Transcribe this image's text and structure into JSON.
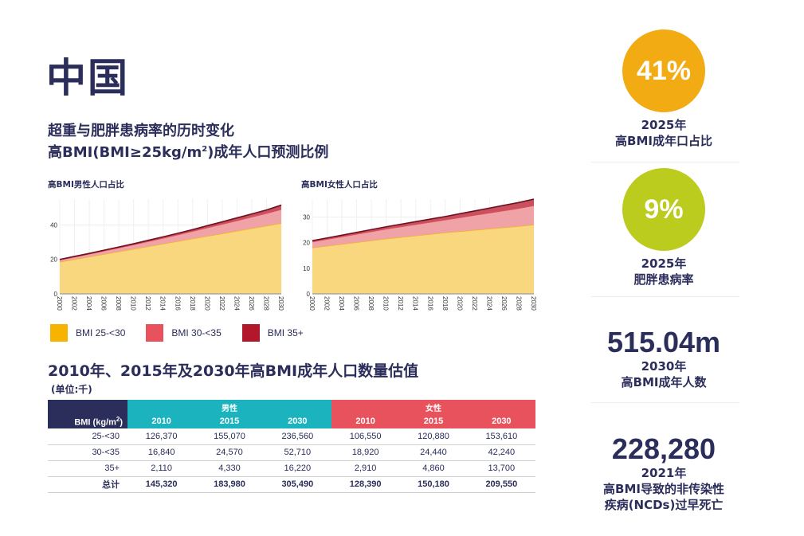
{
  "page": {
    "title": "中国",
    "subtitle_line1": "超重与肥胖患病率的历时变化",
    "subtitle_line2_prefix": "高BMI(BMI≥25kg/m",
    "subtitle_line2_sup": "2",
    "subtitle_line2_suffix": ")成年人口预测比例"
  },
  "colors": {
    "bmi_25_30": "#f6b300",
    "bmi_25_30_fill": "#f9d77e",
    "bmi_30_35": "#e8525c",
    "bmi_30_35_fill": "#f0a3a6",
    "bmi_35_plus": "#b2182b",
    "bmi_35_plus_fill": "#c9505e",
    "navy": "#2b2d5a",
    "teal": "#1bb3bd",
    "stat_orange": "#f2ab12",
    "stat_lime": "#bccc1e"
  },
  "chart_data": [
    {
      "type": "area",
      "stacked": true,
      "title": "高BMI男性人口占比",
      "xlabel": "",
      "ylabel": "",
      "x": [
        2000,
        2002,
        2004,
        2006,
        2008,
        2010,
        2012,
        2014,
        2016,
        2018,
        2020,
        2022,
        2024,
        2026,
        2028,
        2030
      ],
      "xticks": [
        "2000",
        "2002",
        "2004",
        "2006",
        "2008",
        "2010",
        "2012",
        "2014",
        "2016",
        "2018",
        "2020",
        "2022",
        "2024",
        "2026",
        "2028",
        "2030"
      ],
      "yticks": [
        0,
        20,
        40
      ],
      "ylim": [
        0,
        55
      ],
      "grid": true,
      "series": [
        {
          "name": "BMI 25-<30",
          "values": [
            18.5,
            20.0,
            21.5,
            23.0,
            24.5,
            26.0,
            27.5,
            29.0,
            30.5,
            32.0,
            33.5,
            35.0,
            36.5,
            38.0,
            39.5,
            41.0
          ]
        },
        {
          "name": "BMI 30-<35",
          "values": [
            1.2,
            1.4,
            1.6,
            1.9,
            2.2,
            2.5,
            2.9,
            3.3,
            3.8,
            4.3,
            4.9,
            5.4,
            6.0,
            6.6,
            7.2,
            8.0
          ]
        },
        {
          "name": "BMI 35+",
          "values": [
            0.3,
            0.35,
            0.4,
            0.45,
            0.5,
            0.6,
            0.7,
            0.8,
            0.9,
            1.0,
            1.2,
            1.4,
            1.6,
            1.8,
            2.0,
            2.5
          ]
        }
      ]
    },
    {
      "type": "area",
      "stacked": true,
      "title": "高BMI女性人口占比",
      "xlabel": "",
      "ylabel": "",
      "x": [
        2000,
        2002,
        2004,
        2006,
        2008,
        2010,
        2012,
        2014,
        2016,
        2018,
        2020,
        2022,
        2024,
        2026,
        2028,
        2030
      ],
      "xticks": [
        "2000",
        "2002",
        "2004",
        "2006",
        "2008",
        "2010",
        "2012",
        "2014",
        "2016",
        "2018",
        "2020",
        "2022",
        "2024",
        "2026",
        "2028",
        "2030"
      ],
      "yticks": [
        0,
        10,
        20,
        30
      ],
      "ylim": [
        0,
        37
      ],
      "grid": true,
      "series": [
        {
          "name": "BMI 25-<30",
          "values": [
            18.0,
            18.7,
            19.4,
            20.1,
            20.8,
            21.5,
            22.1,
            22.7,
            23.3,
            23.9,
            24.4,
            24.9,
            25.4,
            25.9,
            26.4,
            27.0
          ]
        },
        {
          "name": "BMI 30-<35",
          "values": [
            2.3,
            2.6,
            2.9,
            3.2,
            3.5,
            3.8,
            4.1,
            4.4,
            4.7,
            5.0,
            5.4,
            5.8,
            6.2,
            6.6,
            7.0,
            7.5
          ]
        },
        {
          "name": "BMI 35+",
          "values": [
            0.5,
            0.55,
            0.6,
            0.7,
            0.8,
            0.9,
            1.0,
            1.1,
            1.2,
            1.3,
            1.5,
            1.7,
            1.9,
            2.1,
            2.3,
            2.5
          ]
        }
      ]
    }
  ],
  "legend": [
    {
      "label": "BMI 25-<30",
      "color": "#f6b300"
    },
    {
      "label": "BMI 30-<35",
      "color": "#e8525c"
    },
    {
      "label": "BMI 35+",
      "color": "#b2182b"
    }
  ],
  "table": {
    "title": "2010年、2015年及2030年高BMI成年人口数量估值",
    "unit": "(单位:千)",
    "corner_label": "BMI (kg/m",
    "corner_sup": "2",
    "corner_suffix": ")",
    "male_label": "男性",
    "female_label": "女性",
    "years": [
      "2010",
      "2015",
      "2030"
    ],
    "rows": [
      {
        "label": "25-<30",
        "male": [
          "126,370",
          "155,070",
          "236,560"
        ],
        "female": [
          "106,550",
          "120,880",
          "153,610"
        ]
      },
      {
        "label": "30-<35",
        "male": [
          "16,840",
          "24,570",
          "52,710"
        ],
        "female": [
          "18,920",
          "24,440",
          "42,240"
        ]
      },
      {
        "label": "35+",
        "male": [
          "2,110",
          "4,330",
          "16,220"
        ],
        "female": [
          "2,910",
          "4,860",
          "13,700"
        ]
      },
      {
        "label": "总计",
        "male": [
          "145,320",
          "183,980",
          "305,490"
        ],
        "female": [
          "128,390",
          "150,180",
          "209,550"
        ]
      }
    ]
  },
  "stats": [
    {
      "value": "41%",
      "year": "2025年",
      "desc": "高BMI成年口占比"
    },
    {
      "value": "9%",
      "year": "2025年",
      "desc": "肥胖患病率"
    },
    {
      "value": "515.04m",
      "year": "2030年",
      "desc": "高BMI成年人数"
    },
    {
      "value": "228,280",
      "year": "2021年",
      "desc1": "高BMI导致的非传染性",
      "desc2": "疾病(NCDs)过早死亡"
    }
  ]
}
